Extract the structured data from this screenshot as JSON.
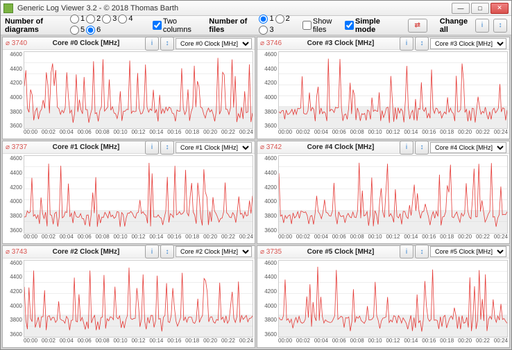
{
  "window": {
    "title": "Generic Log Viewer 3.2 - © 2018 Thomas Barth"
  },
  "toolbar": {
    "diagrams_label": "Number of diagrams",
    "diagrams_options": [
      "1",
      "2",
      "3",
      "4",
      "5",
      "6"
    ],
    "diagrams_selected": "6",
    "two_cols_label": "Two columns",
    "two_cols_checked": true,
    "files_label": "Number of files",
    "files_options": [
      "1",
      "2",
      "3"
    ],
    "files_selected": "1",
    "show_files_label": "Show files",
    "show_files_checked": false,
    "simple_mode_label": "Simple mode",
    "simple_mode_checked": true,
    "swap_label": "⇄",
    "change_all_label": "Change all"
  },
  "chart_style": {
    "line_color": "#e53935",
    "grid_color": "#dddddd",
    "band_color": "#eeeeee",
    "background": "#ffffff",
    "ylim": [
      3400,
      4800
    ],
    "yticks": [
      3600,
      3800,
      4000,
      4200,
      4400,
      4600
    ],
    "xticks": [
      "00:00",
      "00:02",
      "00:04",
      "00:06",
      "00:08",
      "00:10",
      "00:12",
      "00:14",
      "00:16",
      "00:18",
      "00:20",
      "00:22",
      "00:24"
    ],
    "band_y": [
      3400,
      3800
    ]
  },
  "charts": [
    {
      "title": "Core #0 Clock [MHz]",
      "avg": "3740",
      "selector": "Core #0 Clock [MHz]"
    },
    {
      "title": "Core #3 Clock [MHz]",
      "avg": "3746",
      "selector": "Core #3 Clock [MHz]"
    },
    {
      "title": "Core #1 Clock [MHz]",
      "avg": "3737",
      "selector": "Core #1 Clock [MHz]"
    },
    {
      "title": "Core #4 Clock [MHz]",
      "avg": "3742",
      "selector": "Core #4 Clock [MHz]"
    },
    {
      "title": "Core #2 Clock [MHz]",
      "avg": "3743",
      "selector": "Core #2 Clock [MHz]"
    },
    {
      "title": "Core #5 Clock [MHz]",
      "avg": "3735",
      "selector": "Core #5 Clock [MHz]"
    }
  ]
}
